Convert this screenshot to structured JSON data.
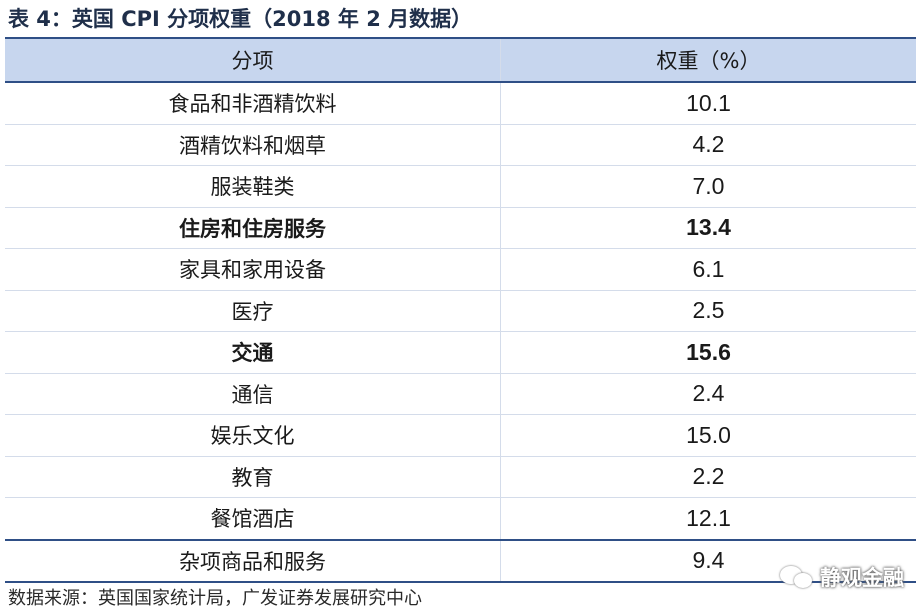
{
  "title": "表 4：英国 CPI 分项权重（2018 年 2 月数据）",
  "table": {
    "headers": [
      "分项",
      "权重（%）"
    ],
    "rows": [
      {
        "category": "食品和非酒精饮料",
        "weight": "10.1",
        "bold": false
      },
      {
        "category": "酒精饮料和烟草",
        "weight": "4.2",
        "bold": false
      },
      {
        "category": "服装鞋类",
        "weight": "7.0",
        "bold": false
      },
      {
        "category": "住房和住房服务",
        "weight": "13.4",
        "bold": true
      },
      {
        "category": "家具和家用设备",
        "weight": "6.1",
        "bold": false
      },
      {
        "category": "医疗",
        "weight": "2.5",
        "bold": false
      },
      {
        "category": "交通",
        "weight": "15.6",
        "bold": true
      },
      {
        "category": "通信",
        "weight": "2.4",
        "bold": false
      },
      {
        "category": "娱乐文化",
        "weight": "15.0",
        "bold": false
      },
      {
        "category": "教育",
        "weight": "2.2",
        "bold": false
      },
      {
        "category": "餐馆酒店",
        "weight": "12.1",
        "bold": false
      },
      {
        "category": "杂项商品和服务",
        "weight": "9.4",
        "bold": false
      }
    ]
  },
  "source": "数据来源：英国国家统计局，广发证券发展研究中心",
  "watermark": {
    "text": "静观金融",
    "icon": "wechat-icon"
  },
  "colors": {
    "header_bg": "#c7d6ee",
    "rule": "#2f4f86",
    "title": "#1f2f4a"
  }
}
